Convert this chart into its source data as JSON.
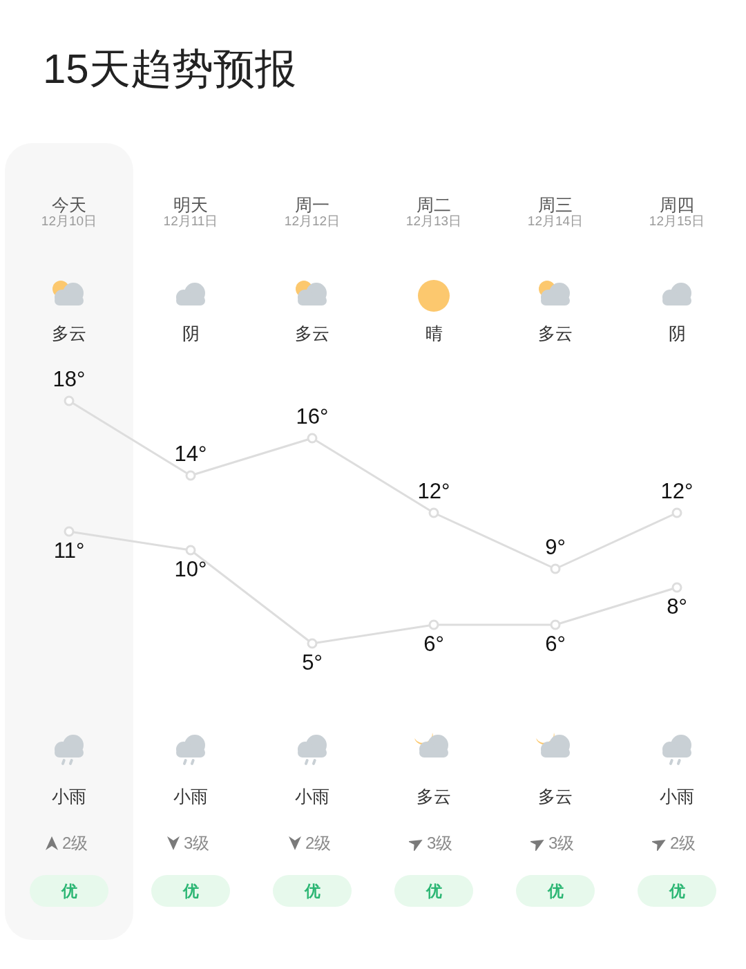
{
  "chart_data": {
    "type": "line",
    "title": "15天趋势预报",
    "categories": [
      "今天",
      "明天",
      "周一",
      "周二",
      "周三",
      "周四"
    ],
    "series": [
      {
        "color": "#dddddd",
        "values": [
          18,
          14,
          16,
          12,
          9,
          12
        ],
        "value_labels": [
          "18°",
          "14°",
          "16°",
          "12°",
          "9°",
          "12°"
        ]
      },
      {
        "color": "#dddddd",
        "values": [
          11,
          10,
          5,
          6,
          6,
          8
        ],
        "value_labels": [
          "11°",
          "10°",
          "5°",
          "6°",
          "6°",
          "8°"
        ]
      }
    ],
    "marker": "circle",
    "legend": false,
    "annotations": [
      "12月10日",
      "12月11日",
      "12月12日",
      "12月13日",
      "12月14日",
      "12月15日",
      "多云",
      "阴",
      "多云",
      "晴",
      "多云",
      "阴",
      "小雨",
      "小雨",
      "小雨",
      "多云",
      "多云",
      "小雨",
      "2级",
      "3级",
      "2级",
      "3级",
      "3级",
      "2级",
      "优",
      "优",
      "优",
      "优",
      "优",
      "优"
    ]
  }
}
